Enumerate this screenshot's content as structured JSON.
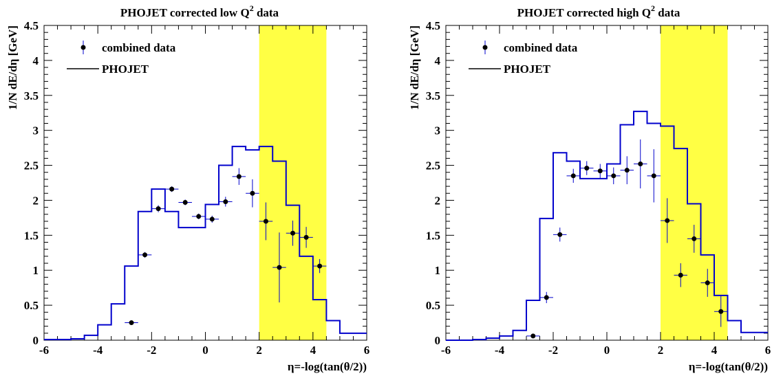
{
  "chart_data": [
    {
      "type": "line",
      "title": "PHOJET corrected low Q",
      "title_sup": "2",
      "title_suffix": " data",
      "xlabel": "η=-log(tan(θ/2))",
      "ylabel": "1/N dE/dη  [GeV]",
      "xlim": [
        -6,
        6
      ],
      "ylim": [
        0,
        4.5
      ],
      "xticks": [
        "-6",
        "-4",
        "-2",
        "0",
        "2",
        "4",
        "6"
      ],
      "yticks": [
        "0",
        "0.5",
        "1",
        "1.5",
        "2",
        "2.5",
        "3",
        "3.5",
        "4",
        "4.5"
      ],
      "shaded_band": {
        "x_from": 2.0,
        "x_to": 4.5,
        "color": "#ffff44"
      },
      "legend": {
        "placement": "top-left",
        "entries": [
          "combined data",
          "PHOJET"
        ]
      },
      "series": [
        {
          "name": "PHOJET",
          "style": "histogram",
          "color": "#0000cc",
          "bin_edges": [
            -6,
            -5.5,
            -5,
            -4.5,
            -4,
            -3.5,
            -3,
            -2.5,
            -2,
            -1.5,
            -1,
            -0.5,
            0,
            0.5,
            1,
            1.5,
            2,
            2.5,
            3,
            3.5,
            4,
            4.5,
            5,
            5.5,
            6
          ],
          "values": [
            0.01,
            0.01,
            0.02,
            0.07,
            0.22,
            0.52,
            1.06,
            1.84,
            2.16,
            1.84,
            1.61,
            1.61,
            1.94,
            2.5,
            2.77,
            2.72,
            2.77,
            2.56,
            1.93,
            1.2,
            0.58,
            0.28,
            0.1,
            0.1
          ]
        },
        {
          "name": "combined data",
          "style": "points",
          "color": "#000000",
          "errorbar_color": "#0000cc",
          "points": [
            {
              "x": -2.75,
              "y": 0.25,
              "xerr": 0.25,
              "yerr": 0.03
            },
            {
              "x": -2.25,
              "y": 1.22,
              "xerr": 0.25,
              "yerr": 0.04
            },
            {
              "x": -1.75,
              "y": 1.88,
              "xerr": 0.25,
              "yerr": 0.05
            },
            {
              "x": -1.25,
              "y": 2.16,
              "xerr": 0.25,
              "yerr": 0.04
            },
            {
              "x": -0.75,
              "y": 1.97,
              "xerr": 0.25,
              "yerr": 0.04
            },
            {
              "x": -0.25,
              "y": 1.77,
              "xerr": 0.25,
              "yerr": 0.04
            },
            {
              "x": 0.25,
              "y": 1.73,
              "xerr": 0.25,
              "yerr": 0.05
            },
            {
              "x": 0.75,
              "y": 1.98,
              "xerr": 0.25,
              "yerr": 0.07
            },
            {
              "x": 1.25,
              "y": 2.34,
              "xerr": 0.25,
              "yerr": 0.12
            },
            {
              "x": 1.75,
              "y": 2.1,
              "xerr": 0.25,
              "yerr": 0.2
            },
            {
              "x": 2.25,
              "y": 1.7,
              "xerr": 0.25,
              "yerr": 0.27
            },
            {
              "x": 2.75,
              "y": 1.04,
              "xerr": 0.25,
              "yerr": 0.5
            },
            {
              "x": 3.25,
              "y": 1.53,
              "xerr": 0.25,
              "yerr": 0.18
            },
            {
              "x": 3.75,
              "y": 1.47,
              "xerr": 0.25,
              "yerr": 0.15
            },
            {
              "x": 4.25,
              "y": 1.06,
              "xerr": 0.25,
              "yerr": 0.1
            }
          ]
        }
      ]
    },
    {
      "type": "line",
      "title": "PHOJET corrected high Q",
      "title_sup": "2",
      "title_suffix": " data",
      "xlabel": "η=-log(tan(θ/2))",
      "ylabel": "1/N dE/dη  [GeV]",
      "xlim": [
        -6,
        6
      ],
      "ylim": [
        0,
        4.5
      ],
      "xticks": [
        "-6",
        "-4",
        "-2",
        "0",
        "2",
        "4",
        "6"
      ],
      "yticks": [
        "0",
        "0.5",
        "1",
        "1.5",
        "2",
        "2.5",
        "3",
        "3.5",
        "4",
        "4.5"
      ],
      "shaded_band": {
        "x_from": 2.0,
        "x_to": 4.5,
        "color": "#ffff44"
      },
      "legend": {
        "placement": "top-left",
        "entries": [
          "combined data",
          "PHOJET"
        ]
      },
      "series": [
        {
          "name": "PHOJET",
          "style": "histogram",
          "color": "#0000cc",
          "bin_edges": [
            -6,
            -5.5,
            -5,
            -4.5,
            -4,
            -3.5,
            -3,
            -2.5,
            -2,
            -1.5,
            -1,
            -0.5,
            0,
            0.5,
            1,
            1.5,
            2,
            2.5,
            3,
            3.5,
            4,
            4.5,
            5,
            5.5,
            6
          ],
          "values": [
            0.0,
            0.0,
            0.01,
            0.03,
            0.06,
            0.14,
            0.57,
            1.74,
            2.68,
            2.56,
            2.31,
            2.31,
            2.52,
            3.08,
            3.27,
            3.1,
            3.06,
            2.74,
            1.95,
            1.22,
            0.64,
            0.28,
            0.11,
            0.11
          ]
        },
        {
          "name": "combined data",
          "style": "points",
          "color": "#000000",
          "errorbar_color": "#0000cc",
          "points": [
            {
              "x": -2.75,
              "y": 0.06,
              "xerr": 0.25,
              "yerr": 0.02
            },
            {
              "x": -2.25,
              "y": 0.61,
              "xerr": 0.25,
              "yerr": 0.08
            },
            {
              "x": -1.75,
              "y": 1.51,
              "xerr": 0.25,
              "yerr": 0.1
            },
            {
              "x": -1.25,
              "y": 2.35,
              "xerr": 0.25,
              "yerr": 0.1
            },
            {
              "x": -0.75,
              "y": 2.46,
              "xerr": 0.25,
              "yerr": 0.1
            },
            {
              "x": -0.25,
              "y": 2.42,
              "xerr": 0.25,
              "yerr": 0.1
            },
            {
              "x": 0.25,
              "y": 2.35,
              "xerr": 0.25,
              "yerr": 0.12
            },
            {
              "x": 0.75,
              "y": 2.43,
              "xerr": 0.25,
              "yerr": 0.2
            },
            {
              "x": 1.25,
              "y": 2.52,
              "xerr": 0.25,
              "yerr": 0.35
            },
            {
              "x": 1.75,
              "y": 2.35,
              "xerr": 0.25,
              "yerr": 0.38
            },
            {
              "x": 2.25,
              "y": 1.71,
              "xerr": 0.25,
              "yerr": 0.32
            },
            {
              "x": 2.75,
              "y": 0.93,
              "xerr": 0.25,
              "yerr": 0.17
            },
            {
              "x": 3.25,
              "y": 1.45,
              "xerr": 0.25,
              "yerr": 0.2
            },
            {
              "x": 3.75,
              "y": 0.82,
              "xerr": 0.25,
              "yerr": 0.2
            },
            {
              "x": 4.25,
              "y": 0.41,
              "xerr": 0.25,
              "yerr": 0.22
            }
          ]
        }
      ]
    }
  ]
}
